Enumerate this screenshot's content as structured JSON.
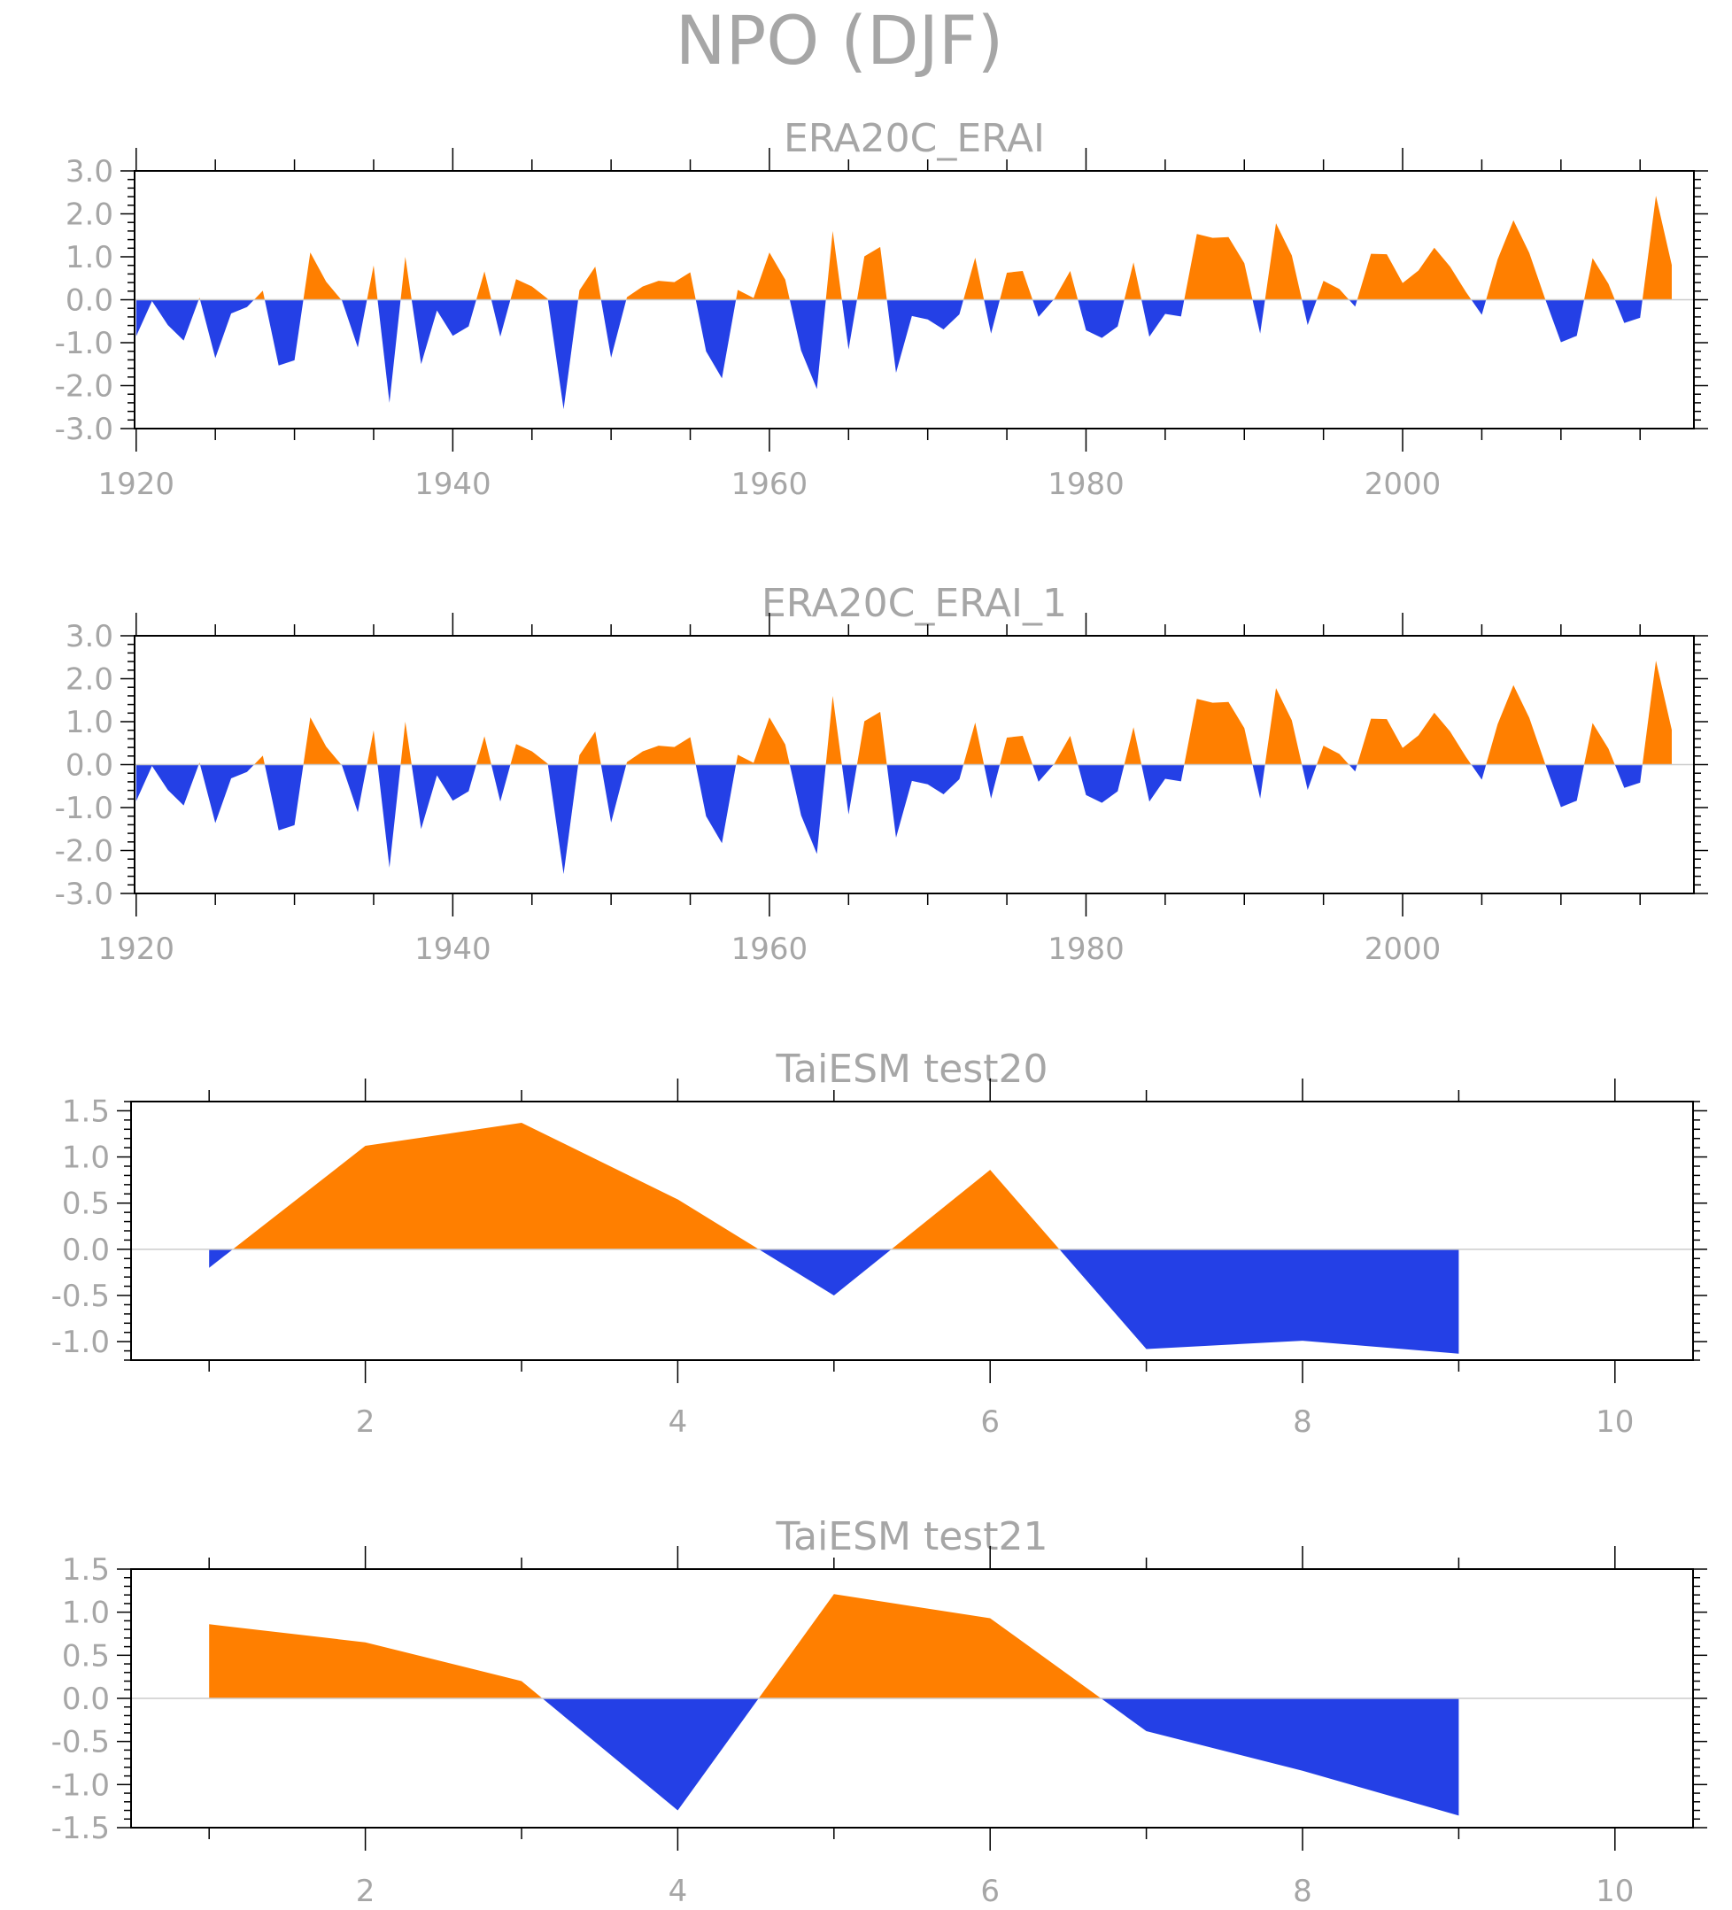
{
  "figure": {
    "title": "NPO (DJF)",
    "colors": {
      "positive": "#ff7f00",
      "negative": "#2440e6",
      "frame": "#000000",
      "text": "#a6a6a6"
    }
  },
  "chart_data": [
    {
      "type": "area",
      "title": "ERA20C_ERAI",
      "xlabel": "",
      "ylabel": "",
      "xlim": [
        1919.9,
        2018.4
      ],
      "ylim": [
        -3.0,
        3.0
      ],
      "yticks": [
        "3.0",
        "2.0",
        "1.0",
        "0.0",
        "-1.0",
        "-2.0",
        "-3.0"
      ],
      "xticks": [
        "1920",
        "1940",
        "1960",
        "1980",
        "2000"
      ],
      "x_start": 1920,
      "values": [
        -0.85,
        -0.03,
        -0.59,
        -0.95,
        0.05,
        -1.36,
        -0.32,
        -0.17,
        0.21,
        -1.53,
        -1.41,
        1.1,
        0.42,
        -0.02,
        -1.11,
        0.8,
        -2.4,
        1.0,
        -1.5,
        -0.25,
        -0.84,
        -0.62,
        0.66,
        -0.86,
        0.48,
        0.31,
        0.02,
        -2.55,
        0.22,
        0.77,
        -1.35,
        0.06,
        0.31,
        0.44,
        0.41,
        0.64,
        -1.2,
        -1.83,
        0.23,
        0.04,
        1.1,
        0.47,
        -1.18,
        -2.08,
        1.6,
        -1.16,
        1.01,
        1.23,
        -1.7,
        -0.38,
        -0.46,
        -0.69,
        -0.34,
        0.98,
        -0.79,
        0.63,
        0.67,
        -0.4,
        0.02,
        0.67,
        -0.71,
        -0.89,
        -0.62,
        0.87,
        -0.86,
        -0.33,
        -0.39,
        1.53,
        1.44,
        1.46,
        0.85,
        -0.79,
        1.78,
        1.03,
        -0.59,
        0.44,
        0.25,
        -0.16,
        1.07,
        1.06,
        0.39,
        0.68,
        1.21,
        0.77,
        0.18,
        -0.35,
        0.94,
        1.85,
        1.09,
        0.02,
        -0.99,
        -0.84,
        0.97,
        0.37,
        -0.54,
        -0.42,
        2.42,
        0.81
      ]
    },
    {
      "type": "area",
      "title": "ERA20C_ERAI_1",
      "xlabel": "",
      "ylabel": "",
      "xlim": [
        1919.9,
        2018.4
      ],
      "ylim": [
        -3.0,
        3.0
      ],
      "yticks": [
        "3.0",
        "2.0",
        "1.0",
        "0.0",
        "-1.0",
        "-2.0",
        "-3.0"
      ],
      "xticks": [
        "1920",
        "1940",
        "1960",
        "1980",
        "2000"
      ],
      "x_start": 1920,
      "values": [
        -0.85,
        -0.03,
        -0.59,
        -0.95,
        0.05,
        -1.36,
        -0.32,
        -0.17,
        0.21,
        -1.53,
        -1.41,
        1.1,
        0.42,
        -0.02,
        -1.11,
        0.8,
        -2.4,
        1.0,
        -1.5,
        -0.25,
        -0.84,
        -0.62,
        0.66,
        -0.86,
        0.48,
        0.31,
        0.02,
        -2.55,
        0.22,
        0.77,
        -1.35,
        0.06,
        0.31,
        0.44,
        0.41,
        0.64,
        -1.2,
        -1.83,
        0.23,
        0.04,
        1.1,
        0.47,
        -1.18,
        -2.08,
        1.6,
        -1.16,
        1.01,
        1.23,
        -1.7,
        -0.38,
        -0.46,
        -0.69,
        -0.34,
        0.98,
        -0.79,
        0.63,
        0.67,
        -0.4,
        0.02,
        0.67,
        -0.71,
        -0.89,
        -0.62,
        0.87,
        -0.86,
        -0.33,
        -0.39,
        1.53,
        1.44,
        1.46,
        0.85,
        -0.79,
        1.78,
        1.03,
        -0.59,
        0.44,
        0.25,
        -0.16,
        1.07,
        1.06,
        0.39,
        0.68,
        1.21,
        0.77,
        0.18,
        -0.35,
        0.94,
        1.85,
        1.09,
        0.02,
        -0.99,
        -0.84,
        0.97,
        0.37,
        -0.54,
        -0.42,
        2.42,
        0.81
      ]
    },
    {
      "type": "area",
      "title": "TaiESM test20",
      "xlabel": "",
      "ylabel": "",
      "xlim": [
        0.5,
        10.5
      ],
      "ylim": [
        -1.2,
        1.6
      ],
      "yticks": [
        "1.5",
        "1.0",
        "0.5",
        "0.0",
        "-0.5",
        "-1.0"
      ],
      "xticks": [
        "2",
        "4",
        "6",
        "8",
        "10"
      ],
      "x": [
        1,
        2,
        3,
        4,
        5,
        6,
        7,
        8,
        9
      ],
      "values": [
        -0.2,
        1.12,
        1.37,
        0.54,
        -0.5,
        0.86,
        -1.08,
        -0.99,
        -1.13
      ]
    },
    {
      "type": "area",
      "title": "TaiESM test21",
      "xlabel": "",
      "ylabel": "",
      "xlim": [
        0.5,
        10.5
      ],
      "ylim": [
        -1.5,
        1.5
      ],
      "yticks": [
        "1.5",
        "1.0",
        "0.5",
        "0.0",
        "-0.5",
        "-1.0",
        "-1.5"
      ],
      "xticks": [
        "2",
        "4",
        "6",
        "8",
        "10"
      ],
      "x": [
        1,
        2,
        3,
        4,
        5,
        6,
        7,
        8,
        9
      ],
      "values": [
        0.86,
        0.65,
        0.2,
        -1.3,
        1.21,
        0.93,
        -0.38,
        -0.84,
        -1.36
      ]
    }
  ]
}
